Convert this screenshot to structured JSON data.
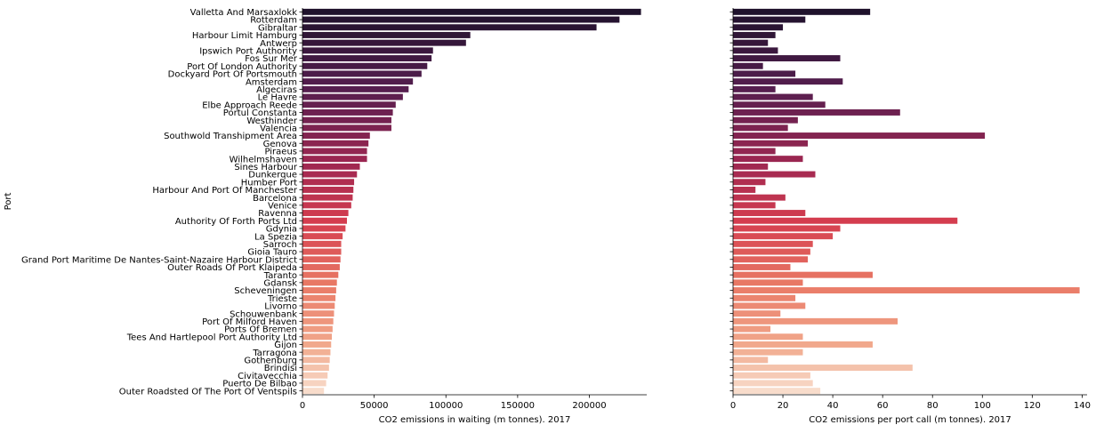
{
  "chart_data": [
    {
      "type": "bar",
      "orientation": "horizontal",
      "ylabel": "Port",
      "xlabel": "CO2 emissions in waiting (m tonnes). 2017",
      "xlim": [
        0,
        240000
      ],
      "xticks": [
        0,
        50000,
        100000,
        150000,
        200000
      ],
      "xtick_labels": [
        "0",
        "50000",
        "100000",
        "150000",
        "200000"
      ],
      "grid": false,
      "palette": "rocket",
      "categories": [
        "Valletta And Marsaxlokk",
        "Rotterdam",
        "Gibraltar",
        "Harbour Limit Hamburg",
        "Antwerp",
        "Ipswich Port Authority",
        "Fos Sur Mer",
        "Port Of London Authority",
        "Dockyard Port Of Portsmouth",
        "Amsterdam",
        "Algeciras",
        "Le Havre",
        "Elbe Approach Reede",
        "Portul Constanta",
        "Westhinder",
        "Valencia",
        "Southwold Transhipment Area",
        "Genova",
        "Piraeus",
        "Wilhelmshaven",
        "Sines Harbour",
        "Dunkerque",
        "Humber Port",
        "Harbour And Port Of Manchester",
        "Barcelona",
        "Venice",
        "Ravenna",
        "Authority Of Forth Ports Ltd",
        "Gdynia",
        "La Spezia",
        "Sarroch",
        "Gioia Tauro",
        "Grand Port Maritime De Nantes-Saint-Nazaire Harbour District",
        "Outer Roads Of Port Klaipeda",
        "Taranto",
        "Gdansk",
        "Scheveningen",
        "Trieste",
        "Livorno",
        "Schouwenbank",
        "Port Of Milford Haven",
        "Ports Of Bremen",
        "Tees And Hartlepool Port Authority Ltd",
        "Gijon",
        "Tarragona",
        "Gothenburg",
        "Brindisi",
        "Civitavecchia",
        "Puerto De Bilbao",
        "Outer Roadsted Of The Port Of Ventspils"
      ],
      "values": [
        236000,
        221000,
        205000,
        117000,
        114000,
        91000,
        90000,
        87000,
        83000,
        77000,
        74000,
        70000,
        65000,
        63000,
        62000,
        62000,
        47000,
        46000,
        45000,
        45000,
        40000,
        38000,
        36000,
        35500,
        35000,
        34000,
        32000,
        31000,
        30000,
        28000,
        27000,
        27000,
        26500,
        26000,
        25000,
        24000,
        23500,
        23000,
        22500,
        22000,
        21500,
        21000,
        20500,
        20000,
        19500,
        19000,
        18500,
        17500,
        16500,
        15000
      ]
    },
    {
      "type": "bar",
      "orientation": "horizontal",
      "shared_y_with_previous": true,
      "xlabel": "CO2 emissions per port call (m tonnes). 2017",
      "xlim": [
        0,
        142
      ],
      "xticks": [
        0,
        20,
        40,
        60,
        80,
        100,
        120,
        140
      ],
      "xtick_labels": [
        "0",
        "20",
        "40",
        "60",
        "80",
        "100",
        "120",
        "140"
      ],
      "grid": false,
      "palette": "rocket",
      "values": [
        55,
        29,
        20,
        17,
        14,
        18,
        43,
        12,
        25,
        44,
        17,
        32,
        37,
        67,
        26,
        22,
        101,
        30,
        17,
        28,
        14,
        33,
        13,
        9,
        21,
        17,
        29,
        90,
        43,
        40,
        32,
        31,
        30,
        23,
        56,
        28,
        139,
        25,
        29,
        19,
        66,
        15,
        28,
        56,
        28,
        14,
        72,
        31,
        32,
        35
      ]
    }
  ]
}
